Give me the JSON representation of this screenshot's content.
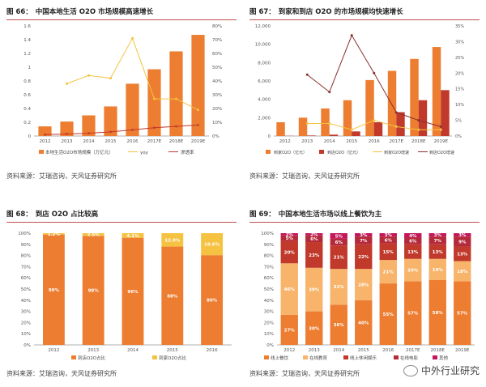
{
  "source_text": "资料来源：艾瑞咨询，天风证券研究所",
  "watermark": "中外行业研究",
  "colors": {
    "orange": "#ED7D31",
    "darkred": "#C0392B",
    "yellow": "#F5C242",
    "light": "#FCE4C4",
    "maroon": "#8B2E2E",
    "pink": "#C2185B",
    "lightorange": "#F7B46A"
  },
  "chart_data": [
    {
      "type": "bar",
      "title_num": "图 66：",
      "title": "中国本地生活 O2O 市场规模高速增长",
      "categories": [
        "2012",
        "2013",
        "2014",
        "2015",
        "2016",
        "2017E",
        "2018E",
        "2019E"
      ],
      "series": [
        {
          "name": "本地生活O2O市场规模（万亿元）",
          "axis": "left",
          "kind": "bar",
          "values": [
            0.14,
            0.21,
            0.3,
            0.43,
            0.76,
            0.97,
            1.23,
            1.47
          ]
        },
        {
          "name": "yoy",
          "axis": "right",
          "kind": "line",
          "values": [
            null,
            0.38,
            0.44,
            0.42,
            0.71,
            0.27,
            0.27,
            0.19
          ]
        },
        {
          "name": "渗透率",
          "axis": "right",
          "kind": "line",
          "values": [
            0.01,
            0.015,
            0.02,
            0.03,
            0.045,
            0.06,
            0.07,
            0.08
          ]
        }
      ],
      "ylim": [
        0,
        1.6
      ],
      "yticks": [
        "0",
        "0.2",
        "0.4",
        "0.6",
        "0.8",
        "1",
        "1.2",
        "1.4",
        "1.6"
      ],
      "y2lim": [
        0,
        0.8
      ],
      "y2ticks": [
        "0%",
        "10%",
        "20%",
        "30%",
        "40%",
        "50%",
        "60%",
        "70%",
        "80%"
      ]
    },
    {
      "type": "bar",
      "title_num": "图 67：",
      "title": "到家和到店 O2O 的市场规模均快速增长",
      "categories": [
        "2012",
        "2013",
        "2014",
        "2015",
        "2016",
        "2017E",
        "2018E",
        "2019E"
      ],
      "series": [
        {
          "name": "到家O2O（亿元）",
          "axis": "left",
          "kind": "bar",
          "values": [
            1500,
            2000,
            3000,
            3900,
            6100,
            7100,
            8400,
            9700
          ]
        },
        {
          "name": "到店O2O（亿元）",
          "axis": "left",
          "kind": "bar",
          "values": [
            20,
            60,
            150,
            500,
            1500,
            2600,
            3900,
            5000
          ]
        },
        {
          "name": "到家O2O增速",
          "axis": "right",
          "kind": "line",
          "values": [
            null,
            0.04,
            0.04,
            0.02,
            0.05,
            0.03,
            0.02,
            0.02
          ]
        },
        {
          "name": "到店O2O增速",
          "axis": "right",
          "kind": "line",
          "values": [
            null,
            0.195,
            0.14,
            0.32,
            0.2,
            0.075,
            0.05,
            0.03
          ]
        }
      ],
      "ylim": [
        0,
        12000
      ],
      "yticks": [
        "0",
        "2,000",
        "4,000",
        "6,000",
        "8,000",
        "10,000",
        "12,000"
      ],
      "y2lim": [
        0,
        0.35
      ],
      "y2ticks": [
        "0%",
        "5%",
        "10%",
        "15%",
        "20%",
        "25%",
        "30%",
        "35%"
      ]
    },
    {
      "type": "bar",
      "stacked": true,
      "title_num": "图 68：",
      "title": "到店 O2O 占比较高",
      "categories": [
        "2012",
        "2013",
        "2014",
        "2015",
        "2016"
      ],
      "series": [
        {
          "name": "到店O2O占比",
          "values": [
            0.99,
            0.98,
            0.96,
            0.88,
            0.8
          ],
          "labels": [
            "99%",
            "98%",
            "96%",
            "88%",
            "80%"
          ]
        },
        {
          "name": "到家O2O占比",
          "values": [
            0.012,
            0.025,
            0.041,
            0.12,
            0.196
          ],
          "labels": [
            "1.2%",
            "2.5%",
            "4.1%",
            "12.0%",
            "19.6%"
          ]
        }
      ],
      "ylim": [
        0,
        1
      ],
      "yticks": [
        "0%",
        "10%",
        "20%",
        "30%",
        "40%",
        "50%",
        "60%",
        "70%",
        "80%",
        "90%",
        "100%"
      ]
    },
    {
      "type": "bar",
      "stacked": true,
      "title_num": "图 69：",
      "title": "中国本地生活市场以线上餐饮为主",
      "categories": [
        "2012",
        "2013",
        "2014",
        "2015",
        "2016",
        "2017E",
        "2018E",
        "2019E"
      ],
      "series": [
        {
          "name": "线上餐饮",
          "values": [
            0.27,
            0.3,
            0.36,
            0.4,
            0.55,
            0.57,
            0.58,
            0.57
          ],
          "labels": [
            "27%",
            "30%",
            "36%",
            "40%",
            "55%",
            "57%",
            "58%",
            "57%"
          ]
        },
        {
          "name": "在线教育",
          "values": [
            0.46,
            0.39,
            0.32,
            0.28,
            0.21,
            0.2,
            0.19,
            0.18
          ],
          "labels": [
            "46%",
            "39%",
            "32%",
            "28%",
            "21%",
            "20%",
            "19%",
            "18%"
          ]
        },
        {
          "name": "线上休闲娱乐",
          "values": [
            0.2,
            0.23,
            0.21,
            0.22,
            0.15,
            0.13,
            0.13,
            0.13
          ],
          "labels": [
            "20%",
            "23%",
            "21%",
            "22%",
            "15%",
            "13%",
            "13%",
            "13%"
          ]
        },
        {
          "name": "在线电影",
          "values": [
            0.05,
            0.06,
            0.06,
            0.07,
            0.06,
            0.06,
            0.07,
            0.09
          ],
          "labels": [
            "5%",
            "6%",
            "6%",
            "7%",
            "6%",
            "6%",
            "7%",
            "9%"
          ]
        },
        {
          "name": "其他",
          "values": [
            0.02,
            0.02,
            0.05,
            0.03,
            0.03,
            0.04,
            0.03,
            0.03
          ],
          "labels": [
            "2%",
            "2%",
            "5%",
            "3%",
            "3%",
            "4%",
            "3%",
            "3%"
          ]
        }
      ],
      "ylim": [
        0,
        1
      ],
      "yticks": [
        "0%",
        "10%",
        "20%",
        "30%",
        "40%",
        "50%",
        "60%",
        "70%",
        "80%",
        "90%",
        "100%"
      ]
    }
  ]
}
